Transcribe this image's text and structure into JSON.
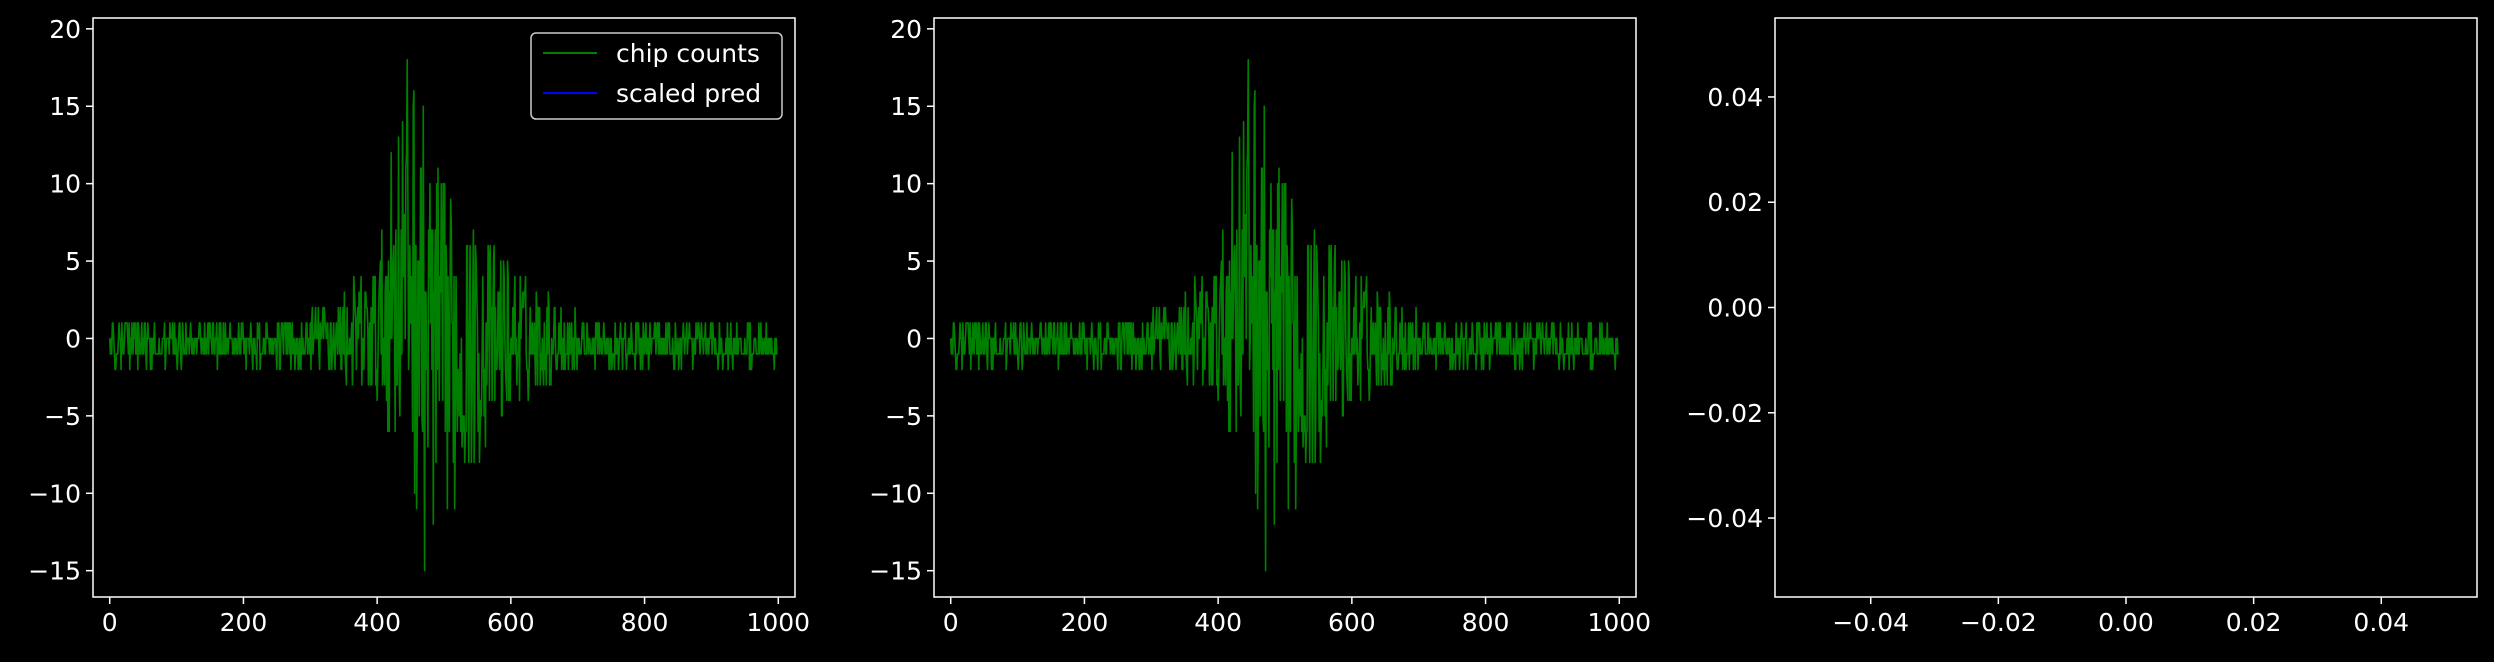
{
  "chart_data": [
    {
      "type": "line",
      "xlim": [
        -25,
        1025
      ],
      "ylim": [
        -16.7,
        20.7
      ],
      "xticks": [
        0,
        200,
        400,
        600,
        800,
        1000
      ],
      "xtick_labels": [
        "0",
        "200",
        "400",
        "600",
        "800",
        "1000"
      ],
      "yticks": [
        -15,
        -10,
        -5,
        0,
        5,
        10,
        15,
        20
      ],
      "ytick_labels": [
        "−15",
        "−10",
        "−5",
        "0",
        "5",
        "10",
        "15",
        "20"
      ],
      "legend": {
        "position": "top-right",
        "entries": [
          {
            "label": "chip counts",
            "color": "#008000"
          },
          {
            "label": "scaled pred",
            "color": "#0000ff"
          }
        ]
      },
      "series": [
        {
          "name": "chip counts",
          "color": "#008000",
          "n_points": 1000,
          "x_range": [
            0,
            999
          ],
          "envelope_x": [
            0,
            100,
            200,
            300,
            350,
            400,
            430,
            450,
            470,
            500,
            550,
            600,
            650,
            700,
            800,
            900,
            999
          ],
          "envelope_max": [
            1,
            1,
            1,
            2,
            3,
            5,
            15,
            19,
            15,
            10,
            7,
            5,
            3,
            2,
            1,
            1,
            1
          ],
          "envelope_min": [
            -1,
            -1,
            -1,
            -2,
            -3,
            -5,
            -7,
            -8,
            -15,
            -12,
            -8,
            -5,
            -3,
            -2,
            -1,
            -1,
            -1
          ]
        },
        {
          "name": "scaled pred",
          "color": "#0000ff",
          "values": []
        }
      ]
    },
    {
      "type": "line",
      "xlim": [
        -25,
        1025
      ],
      "ylim": [
        -16.7,
        20.7
      ],
      "xticks": [
        0,
        200,
        400,
        600,
        800,
        1000
      ],
      "xtick_labels": [
        "0",
        "200",
        "400",
        "600",
        "800",
        "1000"
      ],
      "yticks": [
        -15,
        -10,
        -5,
        0,
        5,
        10,
        15,
        20
      ],
      "ytick_labels": [
        "−15",
        "−10",
        "−5",
        "0",
        "5",
        "10",
        "15",
        "20"
      ],
      "series": [
        {
          "color": "#008000",
          "n_points": 1000,
          "x_range": [
            0,
            999
          ],
          "envelope_x": [
            0,
            100,
            200,
            300,
            350,
            400,
            430,
            450,
            470,
            500,
            550,
            600,
            650,
            700,
            800,
            900,
            999
          ],
          "envelope_max": [
            1,
            1,
            1,
            2,
            3,
            5,
            15,
            19,
            15,
            10,
            7,
            5,
            3,
            2,
            1,
            1,
            1
          ],
          "envelope_min": [
            -1,
            -1,
            -1,
            -2,
            -3,
            -5,
            -7,
            -8,
            -15,
            -12,
            -8,
            -5,
            -3,
            -2,
            -1,
            -1,
            -1
          ]
        }
      ]
    },
    {
      "type": "line",
      "xlim": [
        -0.055,
        0.055
      ],
      "ylim": [
        -0.055,
        0.055
      ],
      "xticks": [
        -0.04,
        -0.02,
        0,
        0.02,
        0.04
      ],
      "xtick_labels": [
        "−0.04",
        "−0.02",
        "0.00",
        "0.02",
        "0.04"
      ],
      "yticks": [
        -0.04,
        -0.02,
        0,
        0.02,
        0.04
      ],
      "ytick_labels": [
        "−0.04",
        "−0.02",
        "0.00",
        "0.02",
        "0.04"
      ],
      "series": []
    }
  ]
}
